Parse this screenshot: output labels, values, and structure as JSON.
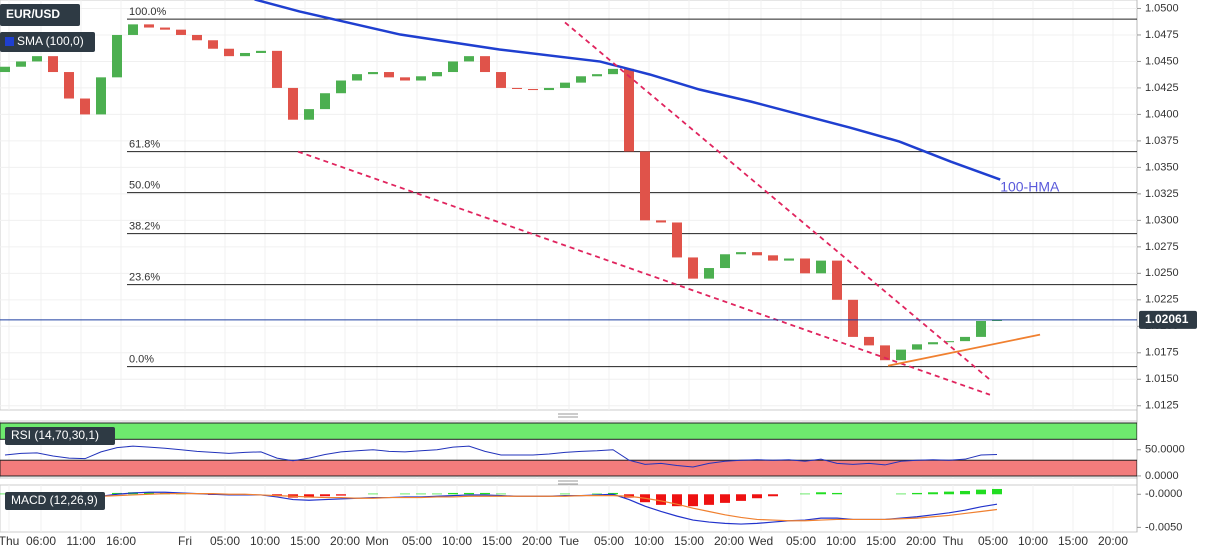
{
  "chart_data": [
    {
      "type": "candlestick",
      "title": "EUR/USD",
      "legend": "SMA (100,0)",
      "xlim": [
        -0.3125,
        70.75
      ],
      "ylim": [
        1.0121,
        1.0508
      ],
      "yticks": [
        {
          "value": 1.0125,
          "label": "1.0125"
        },
        {
          "value": 1.015,
          "label": "1.0150"
        },
        {
          "value": 1.0175,
          "label": "1.0175"
        },
        {
          "value": 1.02,
          "label": "1.0200"
        },
        {
          "value": 1.0225,
          "label": "1.0225"
        },
        {
          "value": 1.025,
          "label": "1.0250"
        },
        {
          "value": 1.0275,
          "label": "1.0275"
        },
        {
          "value": 1.03,
          "label": "1.0300"
        },
        {
          "value": 1.0325,
          "label": "1.0325"
        },
        {
          "value": 1.035,
          "label": "1.0350"
        },
        {
          "value": 1.0375,
          "label": "1.0375"
        },
        {
          "value": 1.04,
          "label": "1.0400"
        },
        {
          "value": 1.0425,
          "label": "1.0425"
        },
        {
          "value": 1.045,
          "label": "1.0450"
        },
        {
          "value": 1.0475,
          "label": "1.0475"
        },
        {
          "value": 1.05,
          "label": "1.0500"
        }
      ],
      "grid": true,
      "up_color": "#4caf50",
      "down_color": "#e0534a",
      "open": 1.044,
      "close": [
        1.0445,
        1.045,
        1.0455,
        1.044,
        1.0415,
        1.04,
        1.0435,
        1.0475,
        1.0485,
        1.0482,
        1.048,
        1.0475,
        1.047,
        1.0462,
        1.0455,
        1.0458,
        1.046,
        1.0425,
        1.0395,
        1.0405,
        1.042,
        1.0432,
        1.0438,
        1.044,
        1.0435,
        1.0432,
        1.0436,
        1.044,
        1.045,
        1.0455,
        1.044,
        1.0425,
        1.0424,
        1.0423,
        1.0425,
        1.043,
        1.0436,
        1.0438,
        1.0443,
        1.0365,
        1.03,
        1.0298,
        1.0265,
        1.0245,
        1.0255,
        1.0268,
        1.027,
        1.0267,
        1.0262,
        1.0264,
        1.025,
        1.0262,
        1.0225,
        1.019,
        1.0182,
        1.0168,
        1.0178,
        1.0183,
        1.0185,
        1.0186,
        1.019,
        1.0205,
        1.0206
      ],
      "hma": {
        "name": "100-HMA",
        "color": "#1f3fd0",
        "x": [
          15.6,
          18.4,
          24.7,
          30.9,
          37.2,
          40.3,
          43.4,
          46.6,
          49.7,
          52.8,
          55.9,
          59.1,
          62.2
        ],
        "values": [
          1.05085,
          1.04972,
          1.04754,
          1.04613,
          1.04499,
          1.04377,
          1.04235,
          1.04122,
          1.03999,
          1.03876,
          1.03744,
          1.03555,
          1.03385
        ]
      },
      "fib_levels": [
        {
          "label": "100.0%",
          "value": 1.049
        },
        {
          "label": "61.8%",
          "value": 1.03649
        },
        {
          "label": "50.0%",
          "value": 1.03262
        },
        {
          "label": "38.2%",
          "value": 1.02875
        },
        {
          "label": "23.6%",
          "value": 1.02393
        },
        {
          "label": "0.0%",
          "value": 1.01619
        }
      ],
      "trendlines": [
        {
          "color": "#e0245e",
          "dashed": true,
          "points": [
            [
              35,
              1.04868
            ],
            [
              61.56,
              1.01496
            ]
          ]
        },
        {
          "color": "#e0245e",
          "dashed": true,
          "points": [
            [
              18.31,
              1.03649
            ],
            [
              61.56,
              1.01354
            ]
          ]
        },
        {
          "color": "#f08030",
          "dashed": false,
          "points": [
            [
              55.19,
              1.01628
            ],
            [
              64.69,
              1.01921
            ]
          ]
        }
      ],
      "last": 1.02061,
      "last_color": "#1d3fa0"
    },
    {
      "type": "line",
      "title": "RSI (14,70,30,1)",
      "xlim": [
        -0.3125,
        70.75
      ],
      "ylim": [
        -4,
        105
      ],
      "yticks": [
        {
          "value": 0,
          "label": "0.0000"
        },
        {
          "value": 50,
          "label": "50.0000"
        }
      ],
      "upper": 70,
      "lower": 30,
      "upper_color": "#6eea6e",
      "lower_color": "#f27c7c",
      "color": "#2233bb",
      "values": [
        40,
        43,
        44,
        38,
        34,
        33,
        46,
        54,
        57,
        55,
        53,
        50,
        47,
        45,
        43,
        45,
        46,
        34,
        29,
        34,
        41,
        46,
        48,
        50,
        47,
        46,
        48,
        50,
        55,
        57,
        47,
        40,
        40,
        40,
        42,
        45,
        47,
        48,
        50,
        30,
        22,
        24,
        20,
        17,
        24,
        28,
        30,
        31,
        30,
        31,
        28,
        32,
        24,
        22,
        24,
        21,
        28,
        30,
        31,
        30,
        32,
        40,
        41
      ]
    },
    {
      "type": "macd",
      "title": "MACD (12,26,9)",
      "xlim": [
        -0.3125,
        70.75
      ],
      "ylim": [
        -0.0057,
        0.0014
      ],
      "yticks": [
        {
          "value": 0,
          "label": "-0.0000"
        },
        {
          "value": -0.005,
          "label": "-0.0050"
        }
      ],
      "xticks": [
        {
          "value": 0.25,
          "label": "Thu"
        },
        {
          "value": 2.25,
          "label": "06:00"
        },
        {
          "value": 4.75,
          "label": "11:00"
        },
        {
          "value": 7.25,
          "label": "16:00"
        },
        {
          "value": 11.25,
          "label": "Fri"
        },
        {
          "value": 13.75,
          "label": "05:00"
        },
        {
          "value": 16.25,
          "label": "10:00"
        },
        {
          "value": 18.75,
          "label": "15:00"
        },
        {
          "value": 21.25,
          "label": "20:00"
        },
        {
          "value": 23.25,
          "label": "Mon"
        },
        {
          "value": 25.75,
          "label": "05:00"
        },
        {
          "value": 28.25,
          "label": "10:00"
        },
        {
          "value": 30.75,
          "label": "15:00"
        },
        {
          "value": 33.25,
          "label": "20:00"
        },
        {
          "value": 35.25,
          "label": "Tue"
        },
        {
          "value": 37.75,
          "label": "05:00"
        },
        {
          "value": 40.25,
          "label": "10:00"
        },
        {
          "value": 42.75,
          "label": "15:00"
        },
        {
          "value": 45.25,
          "label": "20:00"
        },
        {
          "value": 47.25,
          "label": "Wed"
        },
        {
          "value": 49.75,
          "label": "05:00"
        },
        {
          "value": 52.25,
          "label": "10:00"
        },
        {
          "value": 54.75,
          "label": "15:00"
        },
        {
          "value": 57.25,
          "label": "20:00"
        },
        {
          "value": 59.25,
          "label": "Thu"
        },
        {
          "value": 61.75,
          "label": "05:00"
        },
        {
          "value": 64.25,
          "label": "10:00"
        },
        {
          "value": 66.75,
          "label": "15:00"
        },
        {
          "value": 69.25,
          "label": "20:00"
        }
      ],
      "up_color": "#22dd22",
      "down_color": "#ee1111",
      "histogram": [
        0.0001,
        0.0002,
        0.0001,
        -0.0001,
        -0.0002,
        -0.0002,
        0,
        0.0002,
        0.0003,
        0.0003,
        0.0002,
        0.0001,
        0,
        -0.0001,
        -0.0001,
        -0.0001,
        0,
        -0.0002,
        -0.0005,
        -0.0005,
        -0.0003,
        -0.0002,
        0,
        0.0001,
        0,
        0.0001,
        0.0001,
        0.0001,
        0.0002,
        0.0002,
        0.0002,
        0.0001,
        0,
        0,
        0,
        0.0001,
        0,
        0.0001,
        0.0002,
        -0.0005,
        -0.0012,
        -0.0016,
        -0.0018,
        -0.0018,
        -0.0016,
        -0.0013,
        -0.001,
        -0.0006,
        -0.0003,
        0,
        0.0001,
        0.0003,
        0.0002,
        0,
        0,
        0,
        0.0001,
        0.0002,
        0.0003,
        0.0004,
        0.0005,
        0.0007,
        0.0008
      ],
      "series": [
        {
          "color": "#2233cc",
          "values": [
            -0.0001,
            0,
            0,
            -0.0002,
            -0.0004,
            -0.0005,
            -0.0003,
            0,
            0.0002,
            0.0003,
            0.0003,
            0.0002,
            0.0001,
            0,
            -0.0001,
            -0.0001,
            -0.0001,
            -0.0004,
            -0.0008,
            -0.0009,
            -0.0008,
            -0.0007,
            -0.0006,
            -0.0005,
            -0.0005,
            -0.0004,
            -0.0004,
            -0.0003,
            -0.0002,
            -0.0001,
            -0.0001,
            -0.0002,
            -0.0003,
            -0.0003,
            -0.0003,
            -0.0002,
            -0.0002,
            -0.0001,
            0,
            -0.0008,
            -0.0018,
            -0.0026,
            -0.0033,
            -0.0039,
            -0.0042,
            -0.0044,
            -0.0045,
            -0.0044,
            -0.0042,
            -0.004,
            -0.0039,
            -0.0036,
            -0.0036,
            -0.0038,
            -0.0038,
            -0.0038,
            -0.0036,
            -0.0034,
            -0.0031,
            -0.0028,
            -0.0024,
            -0.0019,
            -0.0015
          ]
        },
        {
          "color": "#f08030",
          "values": [
            -0.0002,
            -0.0002,
            -0.0001,
            -0.0001,
            -0.0002,
            -0.0003,
            -0.0003,
            -0.0002,
            -0.0001,
            0,
            0.0001,
            0.0001,
            0.0001,
            0.0001,
            0,
            0,
            -0.0001,
            -0.0002,
            -0.0003,
            -0.0004,
            -0.0005,
            -0.0005,
            -0.0006,
            -0.0006,
            -0.0005,
            -0.0005,
            -0.0005,
            -0.0004,
            -0.0004,
            -0.0003,
            -0.0003,
            -0.0003,
            -0.0003,
            -0.0003,
            -0.0003,
            -0.0003,
            -0.0002,
            -0.0002,
            -0.0002,
            -0.0003,
            -0.0006,
            -0.001,
            -0.0015,
            -0.0021,
            -0.0026,
            -0.0031,
            -0.0035,
            -0.0038,
            -0.0039,
            -0.004,
            -0.004,
            -0.0039,
            -0.0038,
            -0.0038,
            -0.0038,
            -0.0038,
            -0.0037,
            -0.0036,
            -0.0034,
            -0.0032,
            -0.0029,
            -0.0026,
            -0.0023
          ]
        }
      ]
    }
  ]
}
